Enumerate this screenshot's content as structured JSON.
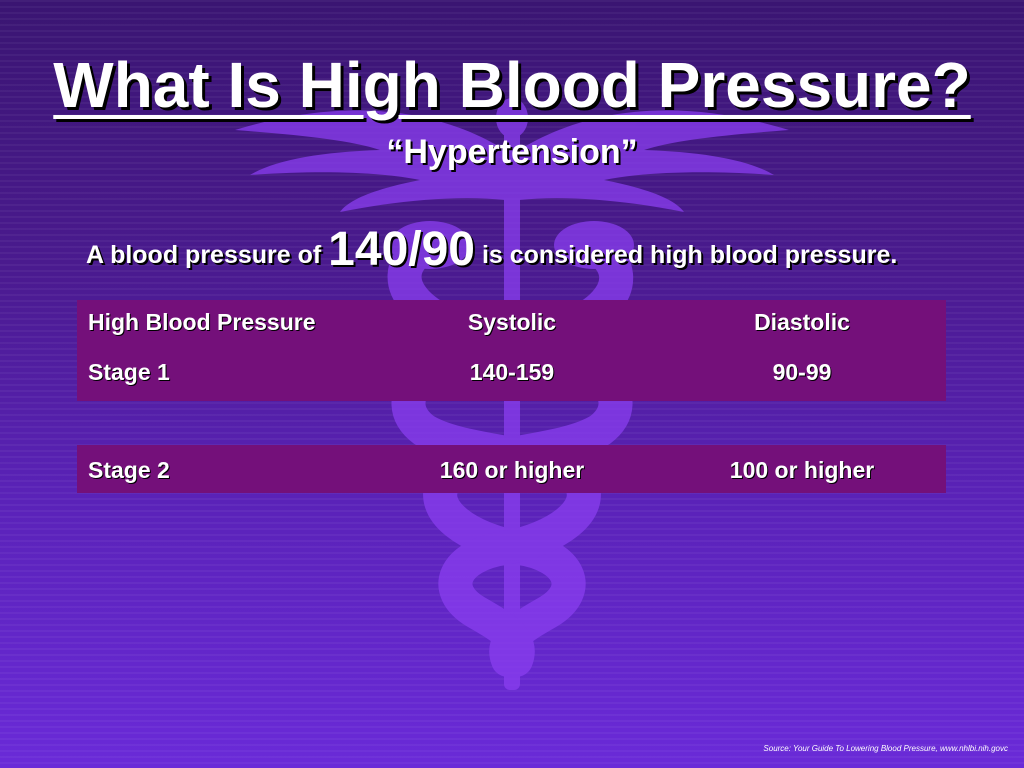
{
  "slide": {
    "title": "What Is High Blood Pressure?",
    "subtitle": "“Hypertension”",
    "definition": {
      "prefix": "A blood pressure of",
      "value": "140/90",
      "suffix": "is considered high blood pressure."
    },
    "table": {
      "headers": [
        "High Blood Pressure",
        "Systolic",
        "Diastolic"
      ],
      "rows": [
        [
          "Stage 1",
          "140-159",
          "90-99"
        ],
        [
          "Stage 2",
          "160 or higher",
          "100 or higher"
        ]
      ]
    },
    "source": "Source:  Your Guide To Lowering Blood Pressure, www.nhlbi.nih.govc"
  },
  "colors": {
    "background_top": "#3a1572",
    "background_bottom": "#6a2ad8",
    "table_fill": "#74107a",
    "caduceus": "#8a3ef0",
    "text": "#ffffff"
  },
  "icons": [
    "caduceus-icon"
  ]
}
